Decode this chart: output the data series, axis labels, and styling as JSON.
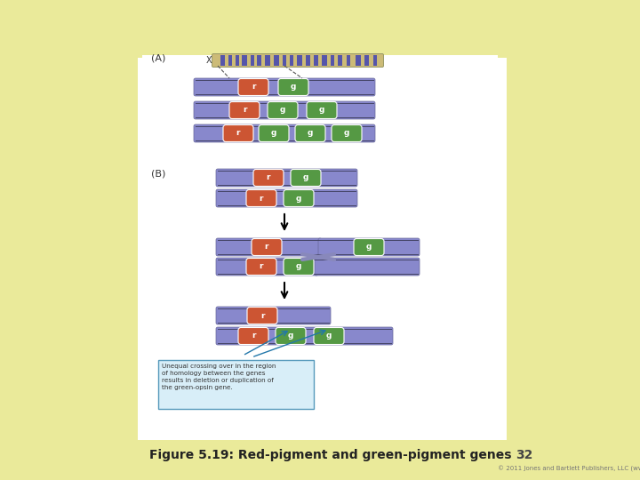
{
  "bg_yellow": "#f0f0a0",
  "bg_white": "#ffffff",
  "content_box_color": "#ffffff",
  "chromosome_color": "#8888cc",
  "chromosome_edge_color": "#666699",
  "r_color": "#cc5533",
  "g_color": "#559944",
  "gene_text_color": "#ffffff",
  "chrom_band_color": "#d4c07a",
  "chrom_stripe_color": "#5555aa",
  "title": "Figure 5.19: Red-pigment and green-pigment genes",
  "page_number": "32",
  "copyright": "© 2011 Jones and Bartlett Publishers, LLC (www.jbpub.com)",
  "annotation_box_color": "#d8eef8",
  "annotation_border_color": "#5599bb",
  "annotation_text": "Unequal crossing over in the region\nof homology between the genes\nresults in deletion or duplication of\nthe green-opsin gene.",
  "annotation_arrow_color": "#2277aa",
  "section_A_label": "(A)",
  "section_B_label": "(B)",
  "x_label": "X"
}
